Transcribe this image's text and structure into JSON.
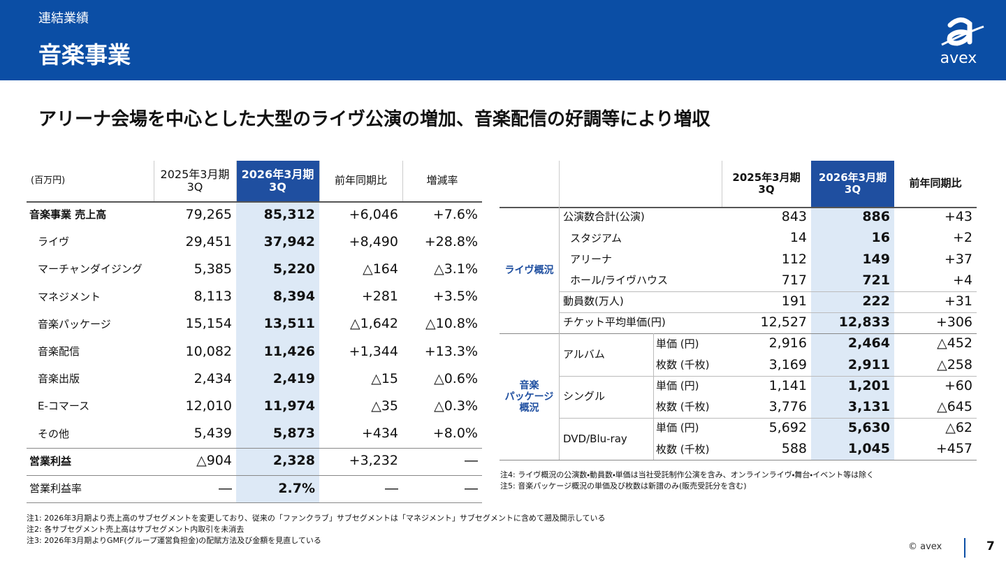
{
  "header": {
    "section": "連結業績",
    "title": "音楽事業",
    "logo": "avex"
  },
  "headline": "アリーナ会場を中心とした大型のライヴ公演の増加、音楽配信の好調等により増収",
  "left_table": {
    "headers": [
      "(百万円)",
      "2025年3月期\n3Q",
      "2026年3月期\n3Q",
      "前年同期比",
      "増減率"
    ],
    "rows": [
      [
        "音楽事業 売上高",
        "79,265",
        "85,312",
        "+6,046",
        "+7.6%"
      ],
      [
        "ライヴ",
        "29,451",
        "37,942",
        "+8,490",
        "+28.8%"
      ],
      [
        "マーチャンダイジング",
        "5,385",
        "5,220",
        "△164",
        "△3.1%"
      ],
      [
        "マネジメント",
        "8,113",
        "8,394",
        "+281",
        "+3.5%"
      ],
      [
        "音楽パッケージ",
        "15,154",
        "13,511",
        "△1,642",
        "△10.8%"
      ],
      [
        "音楽配信",
        "10,082",
        "11,426",
        "+1,344",
        "+13.3%"
      ],
      [
        "音楽出版",
        "2,434",
        "2,419",
        "△15",
        "△0.6%"
      ],
      [
        "E-コマース",
        "12,010",
        "11,974",
        "△35",
        "△0.3%"
      ],
      [
        "その他",
        "5,439",
        "5,873",
        "+434",
        "+8.0%"
      ],
      [
        "営業利益",
        "△904",
        "2,328",
        "+3,232",
        "―"
      ],
      [
        "営業利益率",
        "―",
        "2.7%",
        "―",
        "―"
      ]
    ]
  },
  "right_table": {
    "headers": [
      "2025年3月期\n3Q",
      "2026年3月期\n3Q",
      "前年同期比"
    ],
    "groups": [
      {
        "label": "ライヴ概況",
        "items": [
          {
            "label": "公演数合計(公演)",
            "rows": [
              {
                "values": [
                  "843",
                  "886",
                  "+43"
                ]
              }
            ]
          },
          {
            "label": "スタジアム",
            "rows": [
              {
                "values": [
                  "14",
                  "16",
                  "+2"
                ]
              }
            ]
          },
          {
            "label": "アリーナ",
            "rows": [
              {
                "values": [
                  "112",
                  "149",
                  "+37"
                ]
              }
            ]
          },
          {
            "label": "ホール/ライヴハウス",
            "rows": [
              {
                "values": [
                  "717",
                  "721",
                  "+4"
                ]
              }
            ]
          },
          {
            "label": "動員数(万人)",
            "rows": [
              {
                "values": [
                  "191",
                  "222",
                  "+31"
                ]
              }
            ]
          },
          {
            "label": "チケット平均単価(円)",
            "rows": [
              {
                "values": [
                  "12,527",
                  "12,833",
                  "+306"
                ]
              }
            ]
          }
        ]
      },
      {
        "label": "音楽\nパッケージ\n概況",
        "items": [
          {
            "label": "アルバム",
            "rows": [
              {
                "sub": "単価 (円)",
                "values": [
                  "2,916",
                  "2,464",
                  "△452"
                ]
              },
              {
                "sub": "枚数 (千枚)",
                "values": [
                  "3,169",
                  "2,911",
                  "△258"
                ]
              }
            ]
          },
          {
            "label": "シングル",
            "rows": [
              {
                "sub": "単価 (円)",
                "values": [
                  "1,141",
                  "1,201",
                  "+60"
                ]
              },
              {
                "sub": "枚数 (千枚)",
                "values": [
                  "3,776",
                  "3,131",
                  "△645"
                ]
              }
            ]
          },
          {
            "label": "DVD/Blu-ray",
            "rows": [
              {
                "sub": "単価 (円)",
                "values": [
                  "5,692",
                  "5,630",
                  "△62"
                ]
              },
              {
                "sub": "枚数 (千枚)",
                "values": [
                  "588",
                  "1,045",
                  "+457"
                ]
              }
            ]
          }
        ]
      }
    ]
  },
  "right_notes": [
    "注4: ライヴ概況の公演数・動員数・単価は当社受託制作公演を含み、オンラインライヴ・舞台・イベント等は除く",
    "注5: 音楽パッケージ概況の単価及び枚数は新譜のみ(販売受託分を含む)"
  ],
  "left_notes": [
    "注1: 2026年3月期より売上高のサブセグメントを変更しており、従来の「ファンクラブ」サブセグメントは「マネジメント」サブセグメントに含めて遡及開示している",
    "注2: 各サブセグメント売上高はサブセグメント内取引を未消去",
    "注3: 2026年3月期よりGMF(グループ運営負担金)の配賦方法及び金額を見直している"
  ],
  "footer": {
    "copyright": "© avex",
    "page": "7"
  }
}
